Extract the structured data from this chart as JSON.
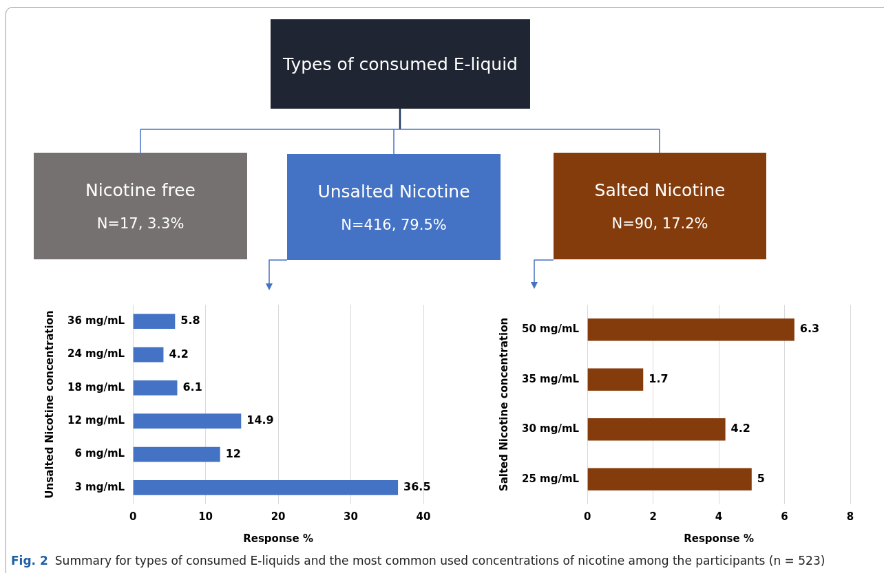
{
  "chart_data": [
    {
      "type": "other",
      "title": "Types of consumed E-liquid",
      "annotations": [
        "Nicotine free",
        "N=17, 3.3%",
        "Unsalted Nicotine",
        "N=416, 79.5%",
        "Salted Nicotine",
        "N=90, 17.2%",
        "Fig. 2",
        "Summary for types of consumed E-liquids and the most common used concentrations of nicotine among the participants (n = 523)"
      ]
    },
    {
      "type": "bar",
      "orientation": "horizontal",
      "categories": [
        "36 mg/mL",
        "24 mg/mL",
        "18 mg/mL",
        "12 mg/mL",
        "6 mg/mL",
        "3 mg/mL"
      ],
      "values": [
        5.8,
        4.2,
        6.1,
        14.9,
        12,
        36.5
      ],
      "color": "#4472c4",
      "xlim": [
        0,
        40
      ],
      "xticks": [
        0,
        10,
        20,
        30,
        40
      ],
      "xlabel": "Response %",
      "ylabel": "Unsalted Nicotine concentration",
      "grid": "x",
      "data_labels": true
    },
    {
      "type": "bar",
      "orientation": "horizontal",
      "categories": [
        "50 mg/mL",
        "35 mg/mL",
        "30 mg/mL",
        "25 mg/mL"
      ],
      "values": [
        6.3,
        1.7,
        4.2,
        5
      ],
      "color": "#843c0c",
      "xlim": [
        0,
        8
      ],
      "xticks": [
        0,
        2,
        4,
        6,
        8
      ],
      "xlabel": "Response %",
      "ylabel": "Salted Nicotine concentration",
      "grid": "x",
      "data_labels": true
    }
  ]
}
